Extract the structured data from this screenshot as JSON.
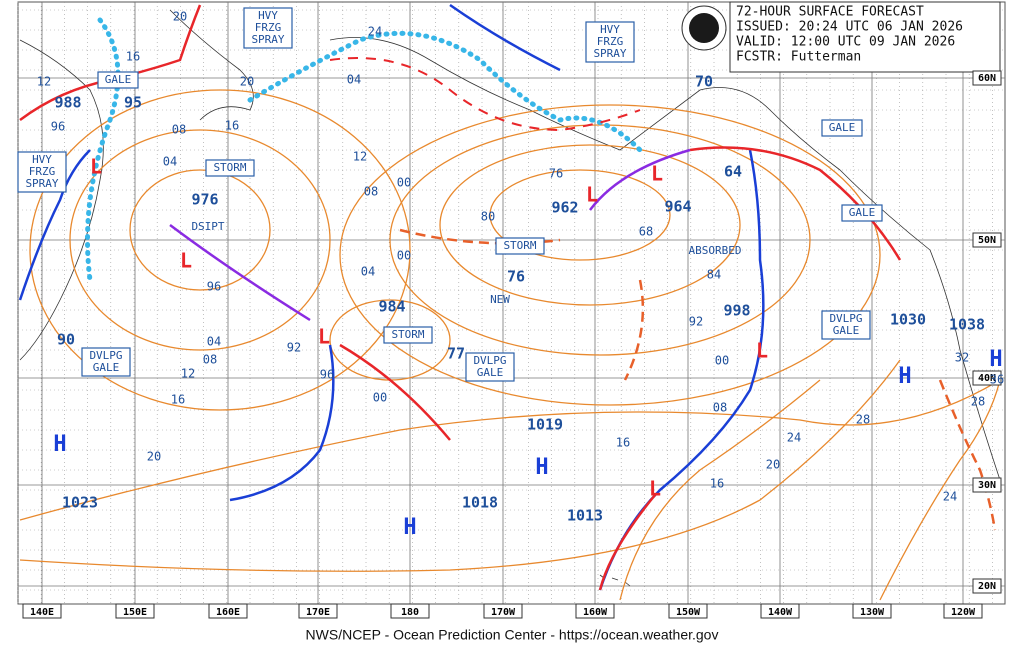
{
  "header": {
    "title": "72-HOUR SURFACE FORECAST",
    "issued": "ISSUED: 20:24 UTC 06 JAN 2026",
    "valid": "VALID:  12:00 UTC 09 JAN 2026",
    "forecaster": "FCSTR:  Futterman"
  },
  "longitude_labels": [
    "140E",
    "150E",
    "160E",
    "170E",
    "180",
    "170W",
    "160W",
    "150W",
    "140W",
    "130W",
    "120W"
  ],
  "latitude_labels": [
    "60N",
    "50N",
    "40N",
    "30N",
    "20N"
  ],
  "warnings": [
    {
      "lines": [
        "GALE"
      ]
    },
    {
      "lines": [
        "HVY",
        "FRZG",
        "SPRAY"
      ]
    },
    {
      "lines": [
        "STORM"
      ]
    },
    {
      "lines": [
        "HVY",
        "FRZG",
        "SPRAY"
      ]
    },
    {
      "lines": [
        "HVY",
        "FRZG",
        "SPRAY"
      ]
    },
    {
      "lines": [
        "GALE"
      ]
    },
    {
      "lines": [
        "GALE"
      ]
    },
    {
      "lines": [
        "STORM"
      ]
    },
    {
      "lines": [
        "STORM"
      ]
    },
    {
      "lines": [
        "DVLPG",
        "GALE"
      ]
    },
    {
      "lines": [
        "DVLPG",
        "GALE"
      ]
    },
    {
      "lines": [
        "DVLPG",
        "GALE"
      ]
    }
  ],
  "plain_labels": [
    "DSIPT",
    "NEW",
    "ABSORBED"
  ],
  "pressure_labels": [
    "988",
    "95",
    "976",
    "984",
    "962",
    "964",
    "76",
    "64",
    "70",
    "998",
    "77",
    "90",
    "1030",
    "1038",
    "1019",
    "1018",
    "1013",
    "1023"
  ],
  "highs": [
    "H",
    "H",
    "H",
    "H",
    "H"
  ],
  "lows": [
    "L",
    "L",
    "L",
    "L",
    "L",
    "L",
    "L"
  ],
  "isobar_labels": [
    "20",
    "16",
    "24",
    "20",
    "16",
    "12",
    "08",
    "04",
    "00",
    "96",
    "16",
    "12",
    "08",
    "04",
    "00",
    "80",
    "76",
    "68",
    "84",
    "92",
    "00",
    "08",
    "16",
    "20",
    "24",
    "28",
    "28",
    "32",
    "36",
    "24",
    "20",
    "16",
    "12",
    "08",
    "04",
    "96",
    "92",
    "00",
    "96",
    "04"
  ],
  "footer": "NWS/NCEP - Ocean Prediction Center - https://ocean.weather.gov"
}
